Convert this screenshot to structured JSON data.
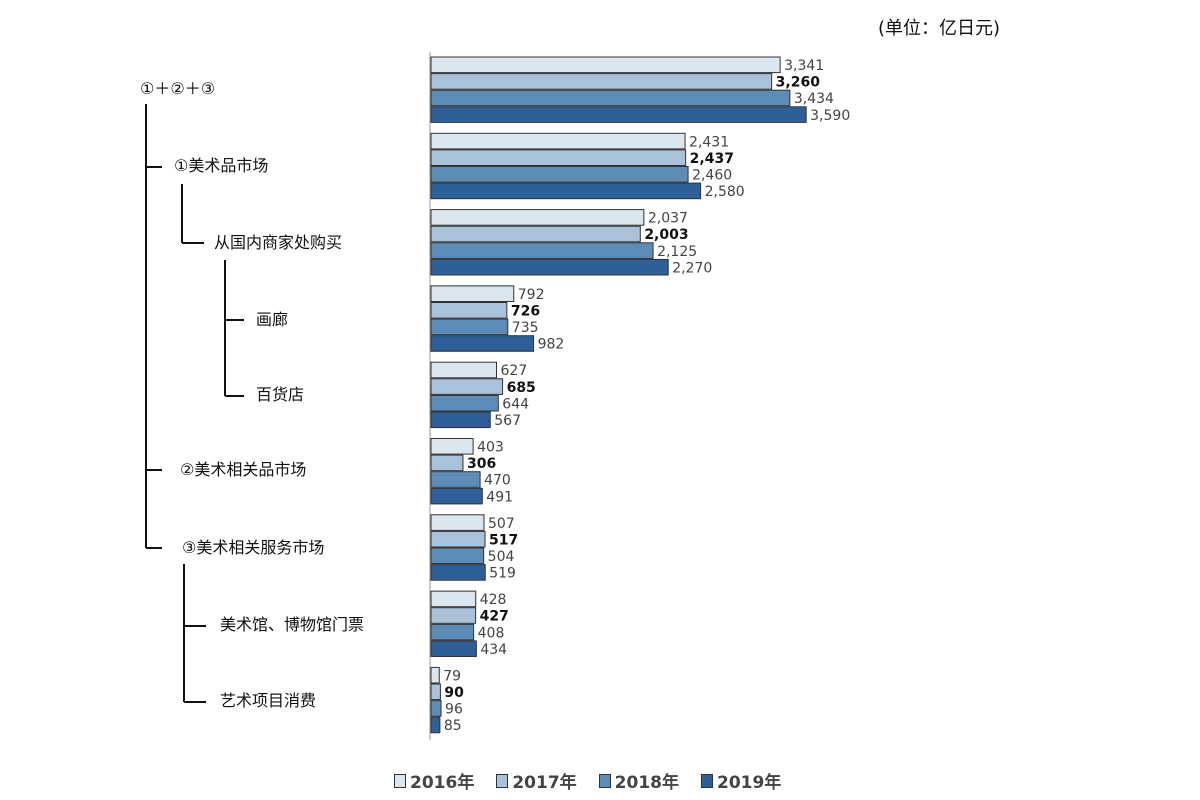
{
  "unit_label": "(单位：亿日元)",
  "chart_data": {
    "type": "bar",
    "orientation": "horizontal",
    "categories": [
      "①＋②＋③",
      "①美术品市场",
      "从国内商家处购买",
      "画廊",
      "百货店",
      "②美术相关品市场",
      "③美术相关服务市场",
      "美术馆、博物馆门票",
      "艺术项目消费"
    ],
    "series": [
      {
        "name": "2016年",
        "color": "#dce6ef",
        "values": [
          3341,
          2431,
          2037,
          792,
          627,
          403,
          507,
          428,
          79
        ]
      },
      {
        "name": "2017年",
        "color": "#a9c1d9",
        "values": [
          3260,
          2437,
          2003,
          726,
          685,
          306,
          517,
          427,
          90
        ]
      },
      {
        "name": "2018年",
        "color": "#5d8cb7",
        "values": [
          3434,
          2460,
          2125,
          735,
          644,
          470,
          504,
          408,
          96
        ]
      },
      {
        "name": "2019年",
        "color": "#2e5f99",
        "values": [
          3590,
          2580,
          2270,
          982,
          567,
          491,
          519,
          434,
          85
        ]
      }
    ],
    "bold_series": "2017年",
    "legend_position": "bottom"
  }
}
